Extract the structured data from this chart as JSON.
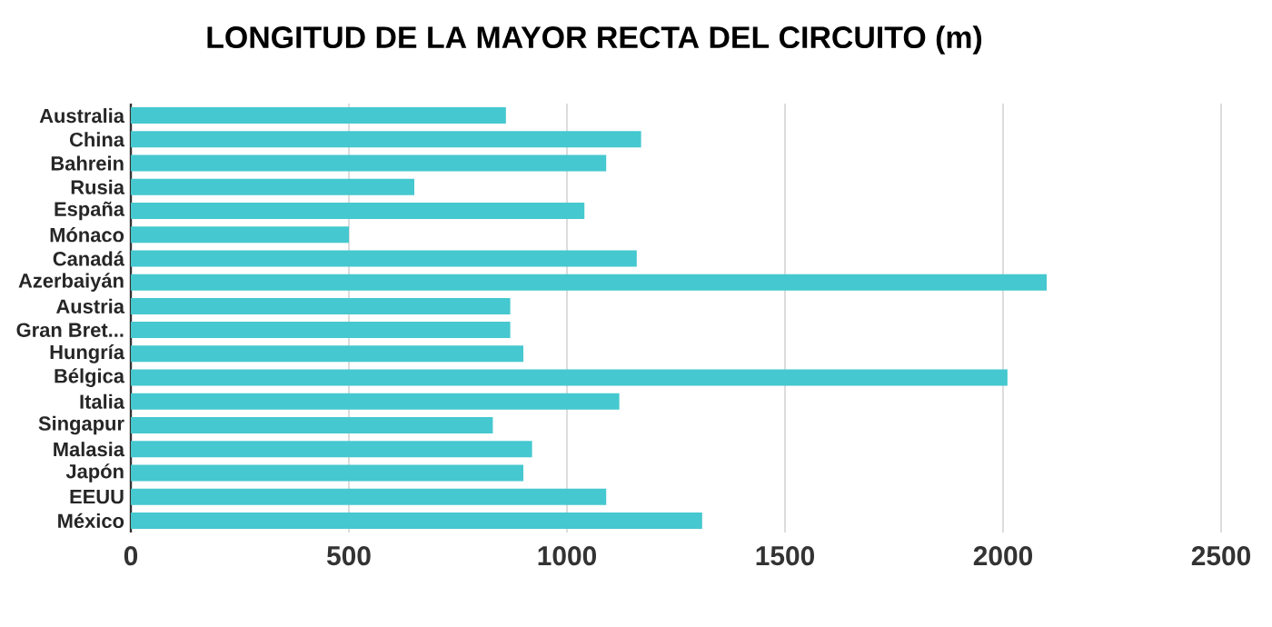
{
  "chart_data": {
    "type": "bar",
    "orientation": "horizontal",
    "title": "LONGITUD DE LA MAYOR RECTA DEL CIRCUITO (m)",
    "categories": [
      "Australia",
      "China",
      "Bahrein",
      "Rusia",
      "España",
      "Mónaco",
      "Canadá",
      "Azerbaiyán",
      "Austria",
      "Gran Bret...",
      "Hungría",
      "Bélgica",
      "Italia",
      "Singapur",
      "Malasia",
      "Japón",
      "EEUU",
      "México"
    ],
    "values": [
      860,
      1170,
      1090,
      650,
      1040,
      500,
      1160,
      2100,
      870,
      870,
      900,
      2010,
      1120,
      830,
      920,
      900,
      1090,
      1310
    ],
    "color": "#45c8cf",
    "xlim": [
      0,
      2500
    ],
    "xticks": [
      0,
      500,
      1000,
      1500,
      2000,
      2500
    ],
    "grid": "x"
  }
}
